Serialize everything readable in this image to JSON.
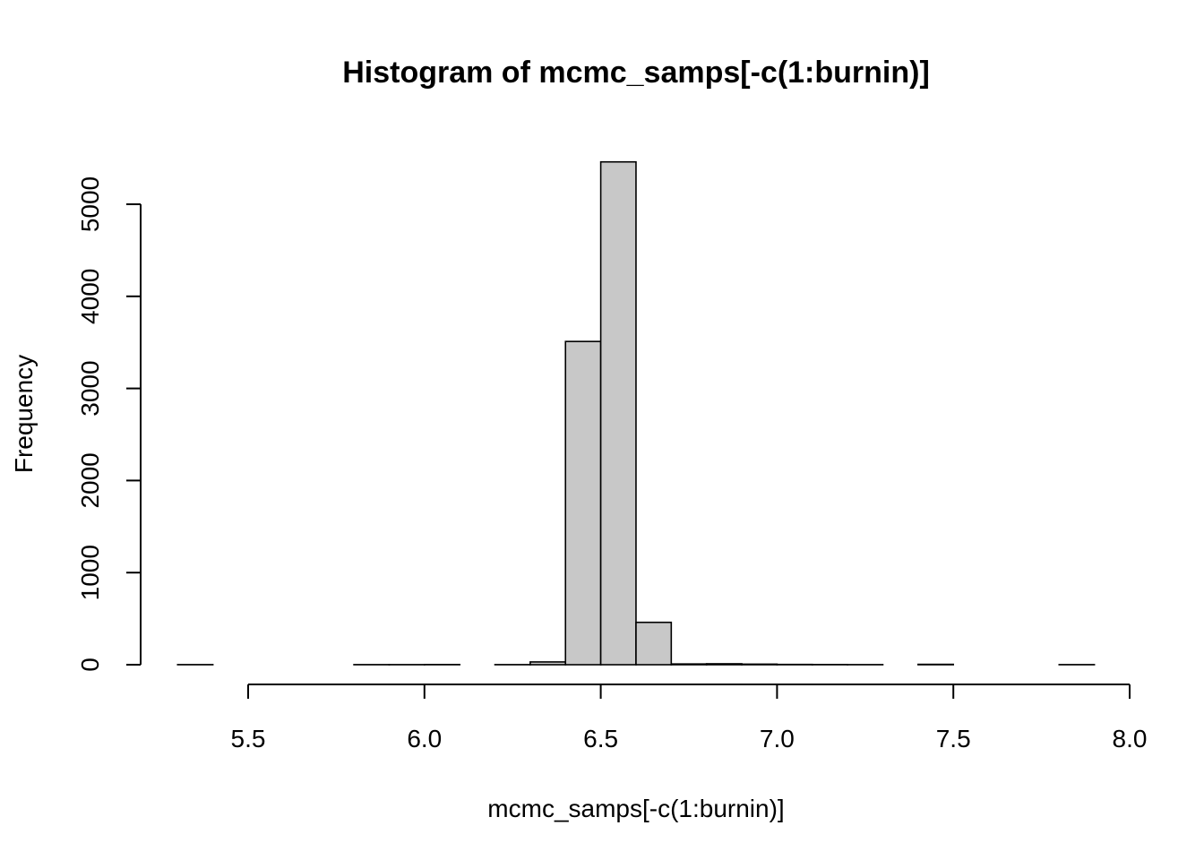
{
  "chart_data": {
    "type": "bar",
    "title": "Histogram of mcmc_samps[-c(1:burnin)]",
    "xlabel": "mcmc_samps[-c(1:burnin)]",
    "ylabel": "Frequency",
    "xlim": [
      5.2,
      8.0
    ],
    "ylim": [
      0,
      5000
    ],
    "x_ticks": [
      "5.5",
      "6.0",
      "6.5",
      "7.0",
      "7.5",
      "8.0"
    ],
    "y_ticks": [
      "0",
      "1000",
      "2000",
      "3000",
      "4000",
      "5000"
    ],
    "bin_width": 0.1,
    "bins": [
      {
        "start": 5.3,
        "end": 5.4,
        "count": 1
      },
      {
        "start": 5.4,
        "end": 5.5,
        "count": 0
      },
      {
        "start": 5.5,
        "end": 5.6,
        "count": 0
      },
      {
        "start": 5.6,
        "end": 5.7,
        "count": 0
      },
      {
        "start": 5.7,
        "end": 5.8,
        "count": 0
      },
      {
        "start": 5.8,
        "end": 5.9,
        "count": 1
      },
      {
        "start": 5.9,
        "end": 6.0,
        "count": 1
      },
      {
        "start": 6.0,
        "end": 6.1,
        "count": 2
      },
      {
        "start": 6.1,
        "end": 6.2,
        "count": 0
      },
      {
        "start": 6.2,
        "end": 6.3,
        "count": 1
      },
      {
        "start": 6.3,
        "end": 6.4,
        "count": 30
      },
      {
        "start": 6.4,
        "end": 6.5,
        "count": 3510
      },
      {
        "start": 6.5,
        "end": 6.6,
        "count": 5460
      },
      {
        "start": 6.6,
        "end": 6.7,
        "count": 460
      },
      {
        "start": 6.7,
        "end": 6.8,
        "count": 8
      },
      {
        "start": 6.8,
        "end": 6.9,
        "count": 10
      },
      {
        "start": 6.9,
        "end": 7.0,
        "count": 6
      },
      {
        "start": 7.0,
        "end": 7.1,
        "count": 3
      },
      {
        "start": 7.1,
        "end": 7.2,
        "count": 2
      },
      {
        "start": 7.2,
        "end": 7.3,
        "count": 1
      },
      {
        "start": 7.3,
        "end": 7.4,
        "count": 0
      },
      {
        "start": 7.4,
        "end": 7.5,
        "count": 4
      },
      {
        "start": 7.5,
        "end": 7.6,
        "count": 0
      },
      {
        "start": 7.6,
        "end": 7.7,
        "count": 0
      },
      {
        "start": 7.7,
        "end": 7.8,
        "count": 0
      },
      {
        "start": 7.8,
        "end": 7.9,
        "count": 1
      }
    ]
  }
}
